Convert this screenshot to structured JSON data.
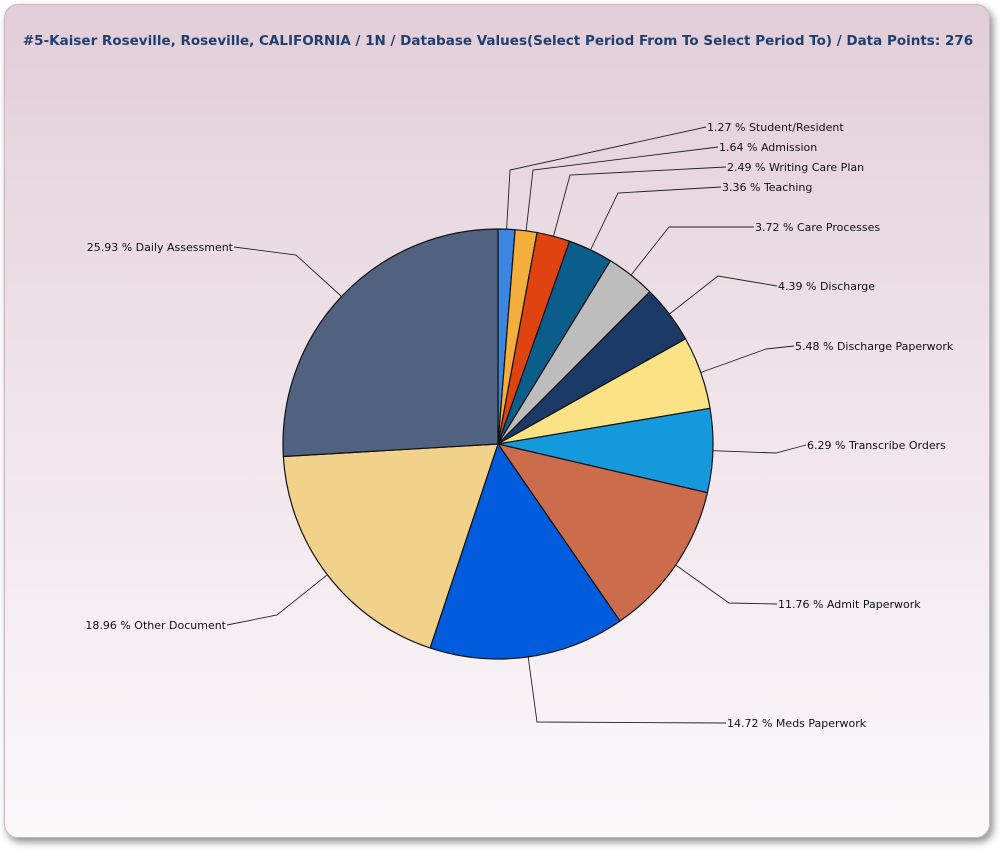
{
  "chart_data": {
    "type": "pie",
    "title": "#5-Kaiser Roseville, Roseville, CALIFORNIA / 1N / Database Values(Select Period From To Select Period To) / Data Points: 276",
    "slices": [
      {
        "name": "Student/Resident",
        "percent": 1.27,
        "label": "1.27 % Student/Resident",
        "color": "#3b86e0"
      },
      {
        "name": "Admission",
        "percent": 1.64,
        "label": "1.64 % Admission",
        "color": "#f4ae3b"
      },
      {
        "name": "Writing Care Plan",
        "percent": 2.49,
        "label": "2.49 % Writing Care Plan",
        "color": "#df4310"
      },
      {
        "name": "Teaching",
        "percent": 3.36,
        "label": "3.36 % Teaching",
        "color": "#0b5e8c"
      },
      {
        "name": "Care Processes",
        "percent": 3.72,
        "label": "3.72 % Care Processes",
        "color": "#bdbdbd"
      },
      {
        "name": "Discharge",
        "percent": 4.39,
        "label": "4.39 % Discharge",
        "color": "#1c3a66"
      },
      {
        "name": "Discharge Paperwork",
        "percent": 5.48,
        "label": "5.48 % Discharge Paperwork",
        "color": "#fbe385"
      },
      {
        "name": "Transcribe Orders",
        "percent": 6.29,
        "label": "6.29 % Transcribe Orders",
        "color": "#1499dc"
      },
      {
        "name": "Admit Paperwork",
        "percent": 11.76,
        "label": "11.76 % Admit Paperwork",
        "color": "#cb6c4c"
      },
      {
        "name": "Meds Paperwork",
        "percent": 14.72,
        "label": "14.72 % Meds Paperwork",
        "color": "#005cdd"
      },
      {
        "name": "Other Document",
        "percent": 18.96,
        "label": "18.96 % Other Document",
        "color": "#f2d28b"
      },
      {
        "name": "Daily Assessment",
        "percent": 25.93,
        "label": "25.93 % Daily Assessment",
        "color": "#50627f"
      }
    ],
    "start_angle": "top",
    "direction": "clockwise"
  }
}
